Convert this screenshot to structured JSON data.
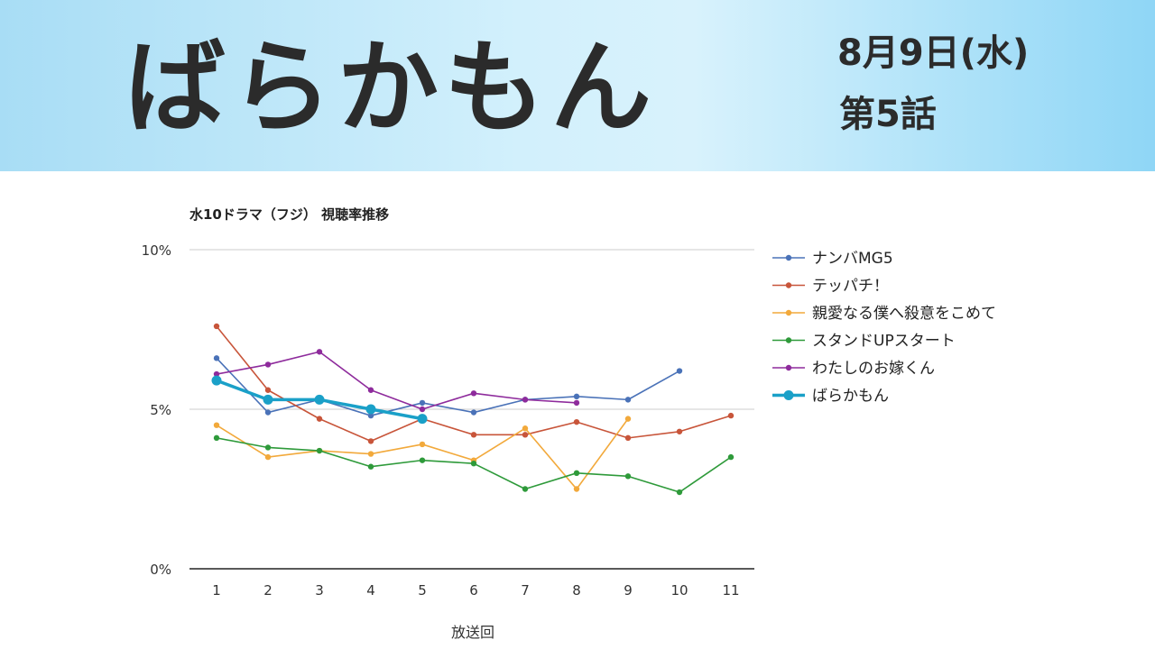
{
  "banner": {
    "title": "ばらかもん",
    "date": "8月9日(水)",
    "episode": "第5話"
  },
  "chart_data": {
    "type": "line",
    "title": "水10ドラマ（フジ） 視聴率推移",
    "xlabel": "放送回",
    "ylabel": "",
    "categories": [
      "1",
      "2",
      "3",
      "4",
      "5",
      "6",
      "7",
      "8",
      "9",
      "10",
      "11"
    ],
    "yticks": [
      "0%",
      "5%",
      "10%"
    ],
    "ylim": [
      0,
      10
    ],
    "grid": true,
    "legend_position": "right",
    "series": [
      {
        "name": "ナンバMG5",
        "color": "#4a72b8",
        "highlight": false,
        "values": [
          6.6,
          4.9,
          5.3,
          4.8,
          5.2,
          4.9,
          5.3,
          5.4,
          5.3,
          6.2,
          null
        ]
      },
      {
        "name": "テッパチ！",
        "color": "#c8553a",
        "highlight": false,
        "values": [
          7.6,
          5.6,
          4.7,
          4.0,
          4.7,
          4.2,
          4.2,
          4.6,
          4.1,
          4.3,
          4.8
        ]
      },
      {
        "name": "親愛なる僕へ殺意をこめて",
        "color": "#f2a93b",
        "highlight": false,
        "values": [
          4.5,
          3.5,
          3.7,
          3.6,
          3.9,
          3.4,
          4.4,
          2.5,
          4.7,
          null,
          null
        ]
      },
      {
        "name": "スタンドUPスタート",
        "color": "#2e9a3a",
        "highlight": false,
        "values": [
          4.1,
          3.8,
          3.7,
          3.2,
          3.4,
          3.3,
          2.5,
          3.0,
          2.9,
          2.4,
          3.5
        ]
      },
      {
        "name": "わたしのお嫁くん",
        "color": "#8e2b9c",
        "highlight": false,
        "values": [
          6.1,
          6.4,
          6.8,
          5.6,
          5.0,
          5.5,
          5.3,
          5.2,
          null,
          null,
          null
        ]
      },
      {
        "name": "ばらかもん",
        "color": "#1aa0c8",
        "highlight": true,
        "values": [
          5.9,
          5.3,
          5.3,
          5.0,
          4.7,
          null,
          null,
          null,
          null,
          null,
          null
        ]
      }
    ]
  }
}
